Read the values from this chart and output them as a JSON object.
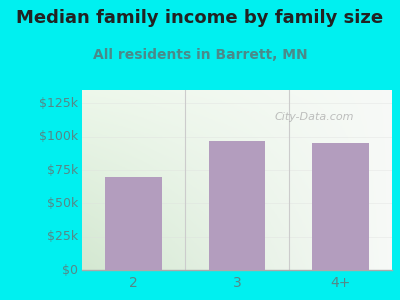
{
  "title": "Median family income by family size",
  "subtitle": "All residents in Barrett, MN",
  "categories": [
    "2",
    "3",
    "4+"
  ],
  "values": [
    70000,
    97000,
    95000
  ],
  "bar_color": "#b39dbe",
  "background_color": "#00f0f0",
  "plot_bg_left": "#d4e8d0",
  "plot_bg_right": "#f5f8f5",
  "yticks": [
    0,
    25000,
    50000,
    75000,
    100000,
    125000
  ],
  "ytick_labels": [
    "$0",
    "$25k",
    "$50k",
    "$75k",
    "$100k",
    "$125k"
  ],
  "ylim": [
    0,
    135000
  ],
  "title_fontsize": 13,
  "subtitle_fontsize": 10,
  "title_color": "#222222",
  "subtitle_color": "#4a8a8a",
  "tick_color": "#558888",
  "watermark": "City-Data.com"
}
